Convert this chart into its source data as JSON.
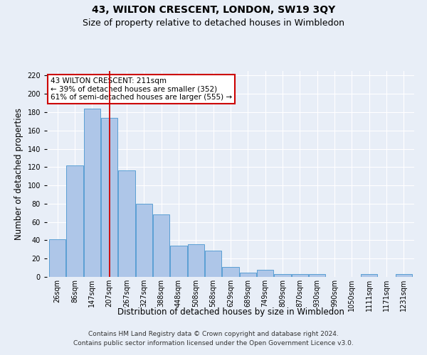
{
  "title": "43, WILTON CRESCENT, LONDON, SW19 3QY",
  "subtitle": "Size of property relative to detached houses in Wimbledon",
  "xlabel": "Distribution of detached houses by size in Wimbledon",
  "ylabel": "Number of detached properties",
  "footer_line1": "Contains HM Land Registry data © Crown copyright and database right 2024.",
  "footer_line2": "Contains public sector information licensed under the Open Government Licence v3.0.",
  "bar_labels": [
    "26sqm",
    "86sqm",
    "147sqm",
    "207sqm",
    "267sqm",
    "327sqm",
    "388sqm",
    "448sqm",
    "508sqm",
    "568sqm",
    "629sqm",
    "689sqm",
    "749sqm",
    "809sqm",
    "870sqm",
    "930sqm",
    "990sqm",
    "1050sqm",
    "1111sqm",
    "1171sqm",
    "1231sqm"
  ],
  "bar_values": [
    41,
    122,
    184,
    174,
    116,
    80,
    68,
    34,
    36,
    29,
    11,
    5,
    8,
    3,
    3,
    3,
    0,
    0,
    3,
    0,
    3
  ],
  "bar_color": "#aec6e8",
  "bar_edge_color": "#5a9fd4",
  "reference_line_x": 3,
  "reference_line_color": "#cc0000",
  "annotation_text": "43 WILTON CRESCENT: 211sqm\n← 39% of detached houses are smaller (352)\n61% of semi-detached houses are larger (555) →",
  "annotation_box_color": "#ffffff",
  "annotation_box_edge_color": "#cc0000",
  "ylim": [
    0,
    225
  ],
  "yticks": [
    0,
    20,
    40,
    60,
    80,
    100,
    120,
    140,
    160,
    180,
    200,
    220
  ],
  "background_color": "#e8eef7",
  "plot_bg_color": "#e8eef7",
  "grid_color": "#ffffff",
  "title_fontsize": 10,
  "subtitle_fontsize": 9,
  "axis_label_fontsize": 8.5,
  "tick_fontsize": 7,
  "annotation_fontsize": 7.5,
  "footer_fontsize": 6.5
}
